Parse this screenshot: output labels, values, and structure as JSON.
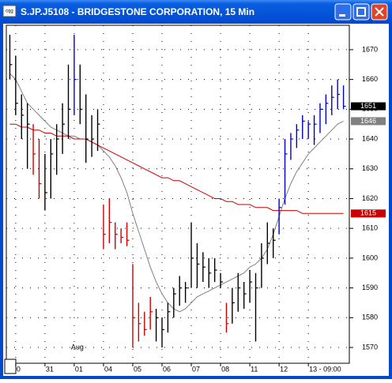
{
  "window": {
    "title": "S.JP.J5108 - BRIDGESTONE CORPORATION, 15 Min"
  },
  "chart_data": {
    "type": "ohlc",
    "x": [
      0,
      1,
      2,
      3,
      4,
      5,
      6,
      7,
      8,
      9,
      10,
      11,
      12,
      13,
      14,
      15,
      16,
      17,
      18,
      19,
      20,
      21,
      22,
      23,
      24,
      25,
      26,
      27,
      28,
      29,
      30,
      31,
      32,
      33,
      34,
      35,
      36,
      37,
      38,
      39,
      40,
      41,
      42,
      43,
      44,
      45,
      46,
      47,
      48,
      49,
      50,
      51,
      52,
      53,
      54,
      55,
      56,
      57
    ],
    "bars": {
      "high": [
        1675,
        1668,
        1655,
        1652,
        1645,
        1640,
        1635,
        1640,
        1645,
        1652,
        1665,
        1675,
        1665,
        1655,
        1648,
        1650,
        1618,
        1620,
        1612,
        1610,
        1612,
        1598,
        1585,
        1582,
        1587,
        1583,
        1580,
        1585,
        1590,
        1594,
        1592,
        1612,
        1605,
        1602,
        1600,
        1600,
        1595,
        1585,
        1590,
        1595,
        1592,
        1596,
        1595,
        1605,
        1612,
        1610,
        1620,
        1640,
        1642,
        1645,
        1648,
        1646,
        1648,
        1652,
        1655,
        1658,
        1660,
        1658
      ],
      "low": [
        1660,
        1648,
        1640,
        1630,
        1628,
        1620,
        1616,
        1620,
        1628,
        1635,
        1640,
        1648,
        1645,
        1632,
        1634,
        1636,
        1603,
        1605,
        1603,
        1605,
        1604,
        1570,
        1572,
        1574,
        1576,
        1572,
        1570,
        1575,
        1580,
        1584,
        1585,
        1590,
        1590,
        1592,
        1590,
        1592,
        1590,
        1575,
        1578,
        1582,
        1583,
        1585,
        1572,
        1590,
        1598,
        1600,
        1608,
        1618,
        1633,
        1637,
        1640,
        1640,
        1638,
        1642,
        1645,
        1648,
        1650,
        1650
      ],
      "close": [
        1665,
        1652,
        1648,
        1645,
        1635,
        1625,
        1622,
        1635,
        1640,
        1645,
        1650,
        1660,
        1650,
        1640,
        1640,
        1645,
        1608,
        1612,
        1608,
        1607,
        1606,
        1580,
        1578,
        1576,
        1582,
        1580,
        1576,
        1582,
        1588,
        1590,
        1590,
        1600,
        1598,
        1597,
        1595,
        1596,
        1592,
        1578,
        1585,
        1590,
        1588,
        1592,
        1590,
        1600,
        1605,
        1606,
        1617,
        1635,
        1640,
        1643,
        1646,
        1645,
        1645,
        1650,
        1652,
        1654,
        1655,
        1651
      ],
      "colors": [
        "#000",
        "#000",
        "#000",
        "#000",
        "#c00",
        "#c00",
        "#000",
        "#000",
        "#000",
        "#000",
        "#000",
        "#00c",
        "#000",
        "#000",
        "#000",
        "#000",
        "#c00",
        "#c00",
        "#c00",
        "#c00",
        "#c00",
        "#c00",
        "#c00",
        "#c00",
        "#c00",
        "#000",
        "#000",
        "#000",
        "#000",
        "#000",
        "#000",
        "#000",
        "#000",
        "#000",
        "#000",
        "#000",
        "#000",
        "#c00",
        "#000",
        "#000",
        "#000",
        "#000",
        "#000",
        "#000",
        "#000",
        "#000",
        "#00c",
        "#00c",
        "#00c",
        "#00c",
        "#00c",
        "#00c",
        "#00c",
        "#00c",
        "#00c",
        "#00c",
        "#00c",
        "#00c"
      ]
    },
    "series": [
      {
        "color": "#808080",
        "values": [
          1662,
          1660,
          1656,
          1652,
          1650,
          1648,
          1646,
          1644,
          1643,
          1642,
          1641,
          1641,
          1640,
          1640,
          1639,
          1638,
          1636,
          1634,
          1631,
          1627,
          1622,
          1615,
          1609,
          1603,
          1597,
          1592,
          1588,
          1585,
          1583,
          1582,
          1583,
          1585,
          1587,
          1588,
          1589,
          1590,
          1591,
          1592,
          1593,
          1594,
          1595,
          1597,
          1598,
          1600,
          1603,
          1608,
          1614,
          1620,
          1625,
          1629,
          1632,
          1635,
          1637,
          1639,
          1641,
          1643,
          1645,
          1646
        ]
      },
      {
        "color": "#cc0000",
        "values": [
          1645,
          1645,
          1644,
          1644,
          1643,
          1643,
          1642,
          1642,
          1641,
          1641,
          1641,
          1640,
          1640,
          1640,
          1639,
          1638,
          1637,
          1636,
          1635,
          1634,
          1633,
          1632,
          1631,
          1630,
          1629,
          1628,
          1627,
          1627,
          1626,
          1626,
          1625,
          1624,
          1623,
          1622,
          1621,
          1620,
          1620,
          1619,
          1619,
          1618,
          1618,
          1618,
          1617,
          1617,
          1617,
          1616,
          1616,
          1616,
          1616,
          1616,
          1615,
          1615,
          1615,
          1615,
          1615,
          1615,
          1615,
          1615
        ]
      }
    ],
    "price_labels": [
      {
        "value": 1651,
        "color": "#000000"
      },
      {
        "value": 1646,
        "color": "#808080"
      },
      {
        "value": 1615,
        "color": "#cc0000"
      }
    ],
    "xlim": [
      -0.6,
      58
    ],
    "xticks": [
      {
        "value": 1,
        "label": "0"
      },
      {
        "value": 6,
        "label": "31"
      },
      {
        "value": 11,
        "label": "01"
      },
      {
        "value": 16,
        "label": "04"
      },
      {
        "value": 21,
        "label": "05"
      },
      {
        "value": 26,
        "label": "06"
      },
      {
        "value": 31,
        "label": "07"
      },
      {
        "value": 36,
        "label": "08"
      },
      {
        "value": 41,
        "label": "11"
      },
      {
        "value": 46,
        "label": "12"
      },
      {
        "value": 51,
        "label": "13 - 09:00"
      }
    ],
    "annotation": "Aug",
    "ylim": [
      1564.7,
      1678.2
    ],
    "yticks": [
      1570,
      1580,
      1590,
      1600,
      1610,
      1620,
      1630,
      1640,
      1650,
      1660,
      1670
    ],
    "grid": true
  }
}
